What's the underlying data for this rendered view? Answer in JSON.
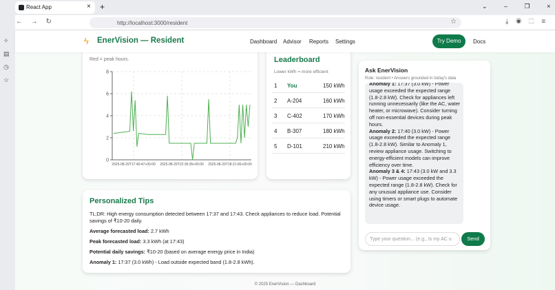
{
  "browser": {
    "tab_title": "React App",
    "url": "http://localhost:3000/resident"
  },
  "nav": {
    "brand": "EnerVision — Resident",
    "links": [
      "Dashboard",
      "Advisor",
      "Reports",
      "Settings"
    ],
    "cta": "Try Demo",
    "docs": "Docs"
  },
  "chart_card": {
    "subtitle": "Red = peak hours.",
    "chart_data": {
      "type": "line",
      "color": "#4caf50",
      "grid": true,
      "ylim": [
        0,
        8
      ],
      "yticks": [
        0,
        2,
        4,
        6,
        8
      ],
      "x_labels": [
        "2025-08-29T17:40:47+00:00",
        "2025-08-29T22:36:35+00:00",
        "2025-08-29T18:21:00+00:00"
      ],
      "values": [
        2.4,
        2.42,
        2.44,
        2.46,
        2.48,
        2.5,
        2.52,
        2.54,
        2.56,
        2.6,
        6.2,
        2.6,
        5.4,
        1.2,
        2.4,
        2.38,
        2.36,
        2.34,
        2.32,
        2.3,
        2.3,
        2.3,
        2.3,
        2.3,
        2.3,
        2.3,
        2.3,
        2.3,
        2.3,
        2.3,
        5.8,
        1.5,
        1.5,
        1.5,
        1.5,
        1.5,
        1.5,
        1.5,
        1.5,
        1.5,
        1.5,
        1.5,
        1.5,
        1.5,
        0,
        1.5,
        1.5,
        1.5,
        1.5,
        1.5,
        1.5,
        1.5,
        1.5,
        5.5,
        1.5,
        1.5,
        1.5,
        1.5,
        1.5,
        1.5,
        1.5,
        1.5,
        1.5,
        1.5,
        1.5,
        1.5,
        1.5,
        1.5,
        1.5,
        2,
        5,
        1.5,
        5,
        2,
        5,
        3,
        5
      ]
    }
  },
  "leaderboard": {
    "title": "Leaderboard",
    "subtitle": "Lower kWh = more efficient",
    "rows": [
      [
        "1",
        "You",
        "150 kWh"
      ],
      [
        "2",
        "A-204",
        "160 kWh"
      ],
      [
        "3",
        "C-402",
        "170 kWh"
      ],
      [
        "4",
        "B-307",
        "180 kWh"
      ],
      [
        "5",
        "D-101",
        "210 kWh"
      ]
    ]
  },
  "ask": {
    "title": "Ask EnerVision",
    "role": "Role: resident • Answers grounded in today's data",
    "messages": [
      {
        "label": "Anomaly 1:",
        "text": "17:37 (3.0 kW) - Power usage exceeded the expected range (1.8-2.8 kW). Check for appliances left running unnecessarily (like the AC, water heater, or microwave). Consider turning off non-essential devices during peak hours."
      },
      {
        "label": "Anomaly 2:",
        "text": "17:40 (3.0 kW) - Power usage exceeded the expected range (1.8-2.8 kW). Similar to Anomaly 1, review appliance usage. Switching to energy-efficient models can improve efficiency over time."
      },
      {
        "label": "Anomaly 3 & 4:",
        "text": "17:43 (3.0 kW and 3.3 kW) - Power usage exceeded the expected range (1.8-2.8 kW). Check for any unusual appliance use. Consider using timers or smart plugs to automate device usage."
      }
    ],
    "placeholder": "Type your question... (e.g., Is my AC u",
    "send": "Send"
  },
  "tips": {
    "title": "Personalized Tips",
    "summary": "TL;DR: High energy consumption detected between 17:37 and 17:43. Check appliances to reduce load. Potential savings of ₹10-20 daily.",
    "items": [
      {
        "label": "Average forecasted load:",
        "text": "2.7 kWh"
      },
      {
        "label": "Peak forecasted load:",
        "text": "3.3 kWh (at 17:43)"
      },
      {
        "label": "Potential daily savings:",
        "text": "₹10-20 (based on average energy price in India)"
      },
      {
        "label": "Anomaly 1:",
        "text": "17:37 (3.0 kWh) - Load outside expected band (1.8-2.8 kWh)."
      }
    ]
  },
  "footer": "© 2025 EnerVision — Dashboard"
}
